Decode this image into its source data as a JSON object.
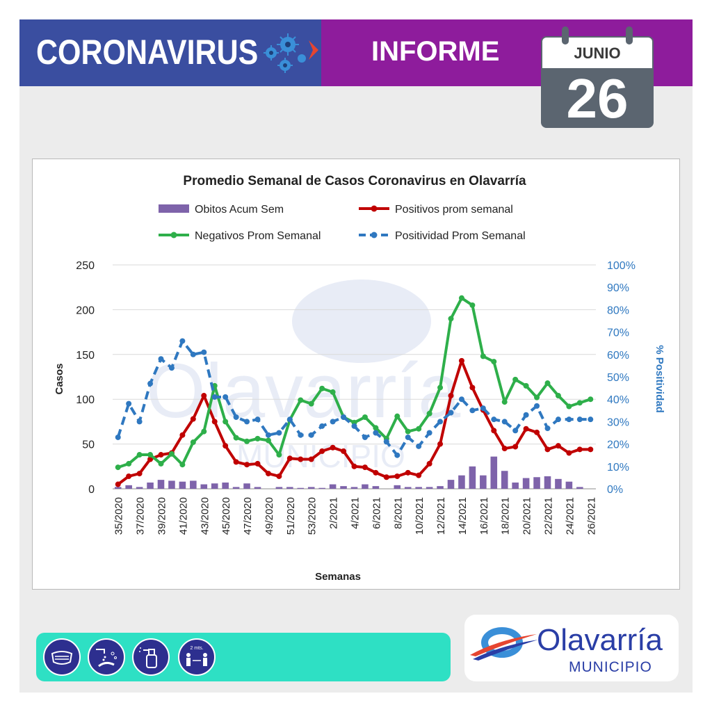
{
  "header": {
    "title": "CORONAVIRUS",
    "subtitle": "INFORME",
    "left_color": "#3a4ea0",
    "right_color": "#8e1c9c"
  },
  "calendar": {
    "month": "JUNIO",
    "day": "26"
  },
  "watermark": {
    "text": "Olavarría",
    "sub": "MUNICIPIO"
  },
  "footer": {
    "icons": [
      "face-mask-icon",
      "hand-washing-icon",
      "sanitizer-spray-icon",
      "social-distance-icon"
    ],
    "distance_label": "2 mts.",
    "bar_color": "#2ee0c4"
  },
  "logo": {
    "name": "Olavarría",
    "sub": "MUNICIPIO"
  },
  "chart_data": {
    "type": "line",
    "title": "Promedio Semanal de Casos Coronavirus en Olavarría",
    "xlabel": "Semanas",
    "ylabel": "Casos",
    "y2label": "% Positividad",
    "ylim": [
      0,
      250
    ],
    "yticks": [
      "0",
      "50",
      "100",
      "150",
      "200",
      "250"
    ],
    "y2lim": [
      0,
      100
    ],
    "y2ticks": [
      "0%",
      "10%",
      "20%",
      "30%",
      "40%",
      "50%",
      "60%",
      "70%",
      "80%",
      "90%",
      "100%"
    ],
    "grid": true,
    "legend_position": "top",
    "categories": [
      "35/2020",
      "36/2020",
      "37/2020",
      "38/2020",
      "39/2020",
      "40/2020",
      "41/2020",
      "42/2020",
      "43/2020",
      "44/2020",
      "45/2020",
      "46/2020",
      "47/2020",
      "48/2020",
      "49/2020",
      "50/2020",
      "51/2020",
      "52/2020",
      "53/2020",
      "1/2021",
      "2/2021",
      "3/2021",
      "4/2021",
      "5/2021",
      "6/2021",
      "7/2021",
      "8/2021",
      "9/2021",
      "10/2021",
      "11/2021",
      "12/2021",
      "13/2021",
      "14/2021",
      "15/2021",
      "16/2021",
      "17/2021",
      "18/2021",
      "19/2021",
      "20/2021",
      "21/2021",
      "22/2021",
      "23/2021",
      "24/2021",
      "25/2021",
      "26/2021"
    ],
    "tick_labels": [
      "35/2020",
      "37/2020",
      "39/2020",
      "41/2020",
      "43/2020",
      "45/2020",
      "47/2020",
      "49/2020",
      "51/2020",
      "53/2020",
      "2/2021",
      "4/2021",
      "6/2021",
      "8/2021",
      "10/2021",
      "12/2021",
      "14/2021",
      "16/2021",
      "18/2021",
      "20/2021",
      "22/2021",
      "24/2021",
      "26/2021"
    ],
    "series": [
      {
        "name": "Obitos Acum Sem",
        "type": "bar",
        "axis": "left",
        "color": "#7e63aa",
        "values": [
          2,
          4,
          2,
          7,
          10,
          9,
          8,
          9,
          5,
          6,
          7,
          2,
          6,
          2,
          0,
          2,
          2,
          1,
          2,
          1,
          5,
          3,
          2,
          5,
          3,
          0,
          4,
          2,
          2,
          2,
          3,
          10,
          15,
          25,
          15,
          36,
          20,
          7,
          12,
          13,
          14,
          11,
          8,
          2,
          0
        ]
      },
      {
        "name": "Positivos prom semanal",
        "type": "line",
        "axis": "left",
        "color": "#c00000",
        "values": [
          5,
          14,
          17,
          33,
          38,
          40,
          60,
          78,
          104,
          75,
          48,
          30,
          27,
          28,
          17,
          14,
          34,
          33,
          33,
          42,
          46,
          42,
          25,
          24,
          18,
          13,
          14,
          18,
          15,
          28,
          50,
          104,
          143,
          113,
          88,
          65,
          45,
          47,
          67,
          63,
          44,
          48,
          40,
          44,
          44
        ]
      },
      {
        "name": "Negativos Prom Semanal",
        "type": "line",
        "axis": "left",
        "color": "#2eaf4a",
        "values": [
          24,
          28,
          38,
          38,
          28,
          39,
          27,
          52,
          64,
          115,
          75,
          57,
          53,
          56,
          54,
          38,
          77,
          99,
          95,
          112,
          108,
          80,
          74,
          80,
          68,
          56,
          81,
          64,
          67,
          84,
          113,
          190,
          213,
          205,
          148,
          142,
          97,
          122,
          115,
          102,
          118,
          104,
          92,
          96,
          100
        ]
      },
      {
        "name": "Positividad Prom Semanal",
        "type": "line",
        "axis": "right",
        "dashed": true,
        "color": "#2f78c0",
        "values": [
          23,
          38,
          30,
          47,
          58,
          54,
          66,
          60,
          61,
          41,
          41,
          32,
          30,
          31,
          24,
          25,
          31,
          24,
          24,
          28,
          30,
          32,
          28,
          23,
          25,
          21,
          15,
          23,
          19,
          25,
          30,
          34,
          40,
          35,
          36,
          31,
          30,
          26,
          33,
          37,
          27,
          31,
          31,
          31,
          31
        ]
      }
    ]
  }
}
